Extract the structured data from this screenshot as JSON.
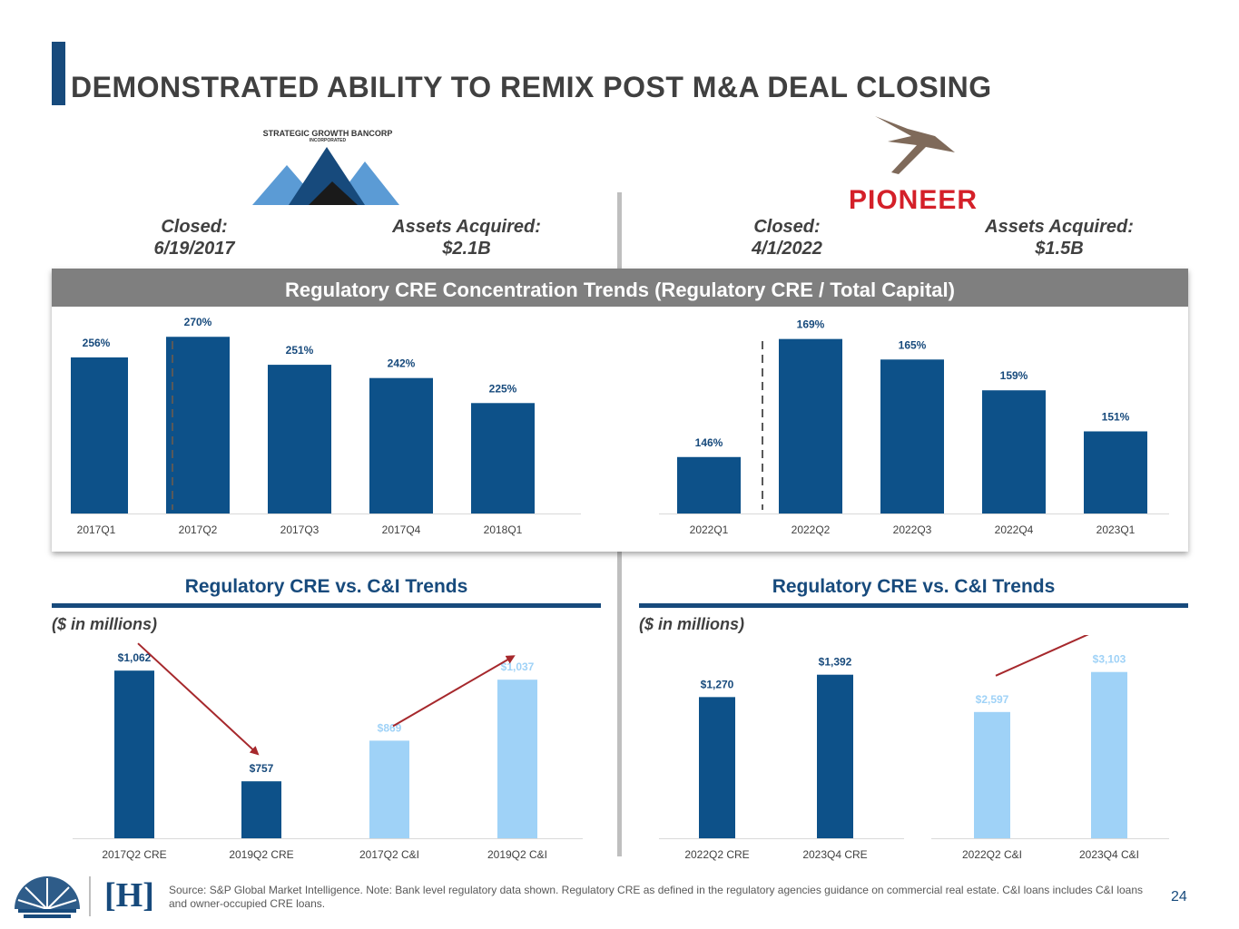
{
  "title": "DEMONSTRATED ABILITY TO REMIX POST M&A DEAL CLOSING",
  "logos": {
    "left_name": "STRATEGIC GROWTH BANCORP",
    "left_sub": "INCORPORATED",
    "right_name": "PIONEER",
    "footer_mark": "[H]"
  },
  "left_deal": {
    "closed_label": "Closed:",
    "closed_value": "6/19/2017",
    "assets_label": "Assets Acquired:",
    "assets_value": "$2.1B"
  },
  "right_deal": {
    "closed_label": "Closed:",
    "closed_value": "4/1/2022",
    "assets_label": "Assets Acquired:",
    "assets_value": "$1.5B"
  },
  "concentration_header": "Regulatory CRE Concentration Trends (Regulatory CRE / Total Capital)",
  "bottom_left": {
    "title": "Regulatory CRE vs. C&I Trends",
    "units": "($ in millions)"
  },
  "bottom_right": {
    "title": "Regulatory CRE vs. C&I Trends",
    "units": "($ in millions)"
  },
  "colors": {
    "dark_blue": "#174a7c",
    "bar_blue": "#0d5189",
    "light_blue": "#9fd2f7",
    "arrow_red": "#a6282c"
  },
  "chart_data": [
    {
      "id": "conc-left",
      "type": "bar",
      "title": "Regulatory CRE Concentration Trends (Regulatory CRE / Total Capital)",
      "categories": [
        "2017Q1",
        "2017Q2",
        "2017Q3",
        "2017Q4",
        "2018Q1"
      ],
      "values": [
        256,
        270,
        251,
        242,
        225
      ],
      "labels": [
        "256%",
        "270%",
        "251%",
        "242%",
        "225%"
      ],
      "colors": [
        "#0d5189",
        "#0d5189",
        "#0d5189",
        "#0d5189",
        "#0d5189"
      ],
      "label_colors": [
        "#174a7c",
        "#174a7c",
        "#174a7c",
        "#174a7c",
        "#174a7c"
      ],
      "ylim": [
        150,
        272
      ],
      "closing_marker_after": 0,
      "arrows": []
    },
    {
      "id": "conc-right",
      "type": "bar",
      "title": "Regulatory CRE Concentration Trends (Regulatory CRE / Total Capital)",
      "categories": [
        "2022Q1",
        "2022Q2",
        "2022Q3",
        "2022Q4",
        "2023Q1"
      ],
      "values": [
        146,
        169,
        165,
        159,
        151
      ],
      "labels": [
        "146%",
        "169%",
        "165%",
        "159%",
        "151%"
      ],
      "colors": [
        "#0d5189",
        "#0d5189",
        "#0d5189",
        "#0d5189",
        "#0d5189"
      ],
      "label_colors": [
        "#174a7c",
        "#174a7c",
        "#174a7c",
        "#174a7c",
        "#174a7c"
      ],
      "ylim": [
        135,
        170
      ],
      "closing_marker_after": 0,
      "arrows": []
    },
    {
      "id": "mix-left",
      "type": "bar",
      "title": "Regulatory CRE vs. C&I Trends",
      "ylabel": "($ in millions)",
      "categories": [
        "2017Q2 CRE",
        "2019Q2 CRE",
        "2017Q2 C&I",
        "2019Q2 C&I"
      ],
      "values": [
        1062,
        757,
        869,
        1037
      ],
      "labels": [
        "$1,062",
        "$757",
        "$869",
        "$1,037"
      ],
      "colors": [
        "#0d5189",
        "#0d5189",
        "#9fd2f7",
        "#9fd2f7"
      ],
      "label_colors": [
        "#174a7c",
        "#174a7c",
        "#9fd2f7",
        "#9fd2f7"
      ],
      "ylim": [
        600,
        1080
      ],
      "arrows": [
        [
          0,
          1
        ],
        [
          2,
          3
        ]
      ]
    },
    {
      "id": "mix-right",
      "type": "bar",
      "title": "Regulatory CRE vs. C&I Trends",
      "ylabel": "($ in millions)",
      "categories": [
        "2022Q2 CRE",
        "2023Q4 CRE",
        "2022Q2 C&I",
        "2023Q4 C&I"
      ],
      "values": [
        1270,
        1392,
        2597,
        3103
      ],
      "labels": [
        "$1,270",
        "$1,392",
        "$2,597",
        "$3,103"
      ],
      "colors": [
        "#0d5189",
        "#0d5189",
        "#9fd2f7",
        "#9fd2f7"
      ],
      "label_colors": [
        "#174a7c",
        "#174a7c",
        "#9fd2f7",
        "#9fd2f7"
      ],
      "scale_groups": [
        [
          0,
          1
        ],
        [
          2,
          3
        ]
      ],
      "group_ylims": [
        [
          500,
          1440
        ],
        [
          1000,
          3180
        ]
      ],
      "arrows": [
        [
          2,
          3
        ]
      ]
    }
  ],
  "source": "Source: S&P Global Market Intelligence. Note: Bank level regulatory data shown. Regulatory CRE as defined in the regulatory agencies guidance on commercial real estate. C&I loans includes C&I loans and owner-occupied CRE loans.",
  "page_number": "24"
}
